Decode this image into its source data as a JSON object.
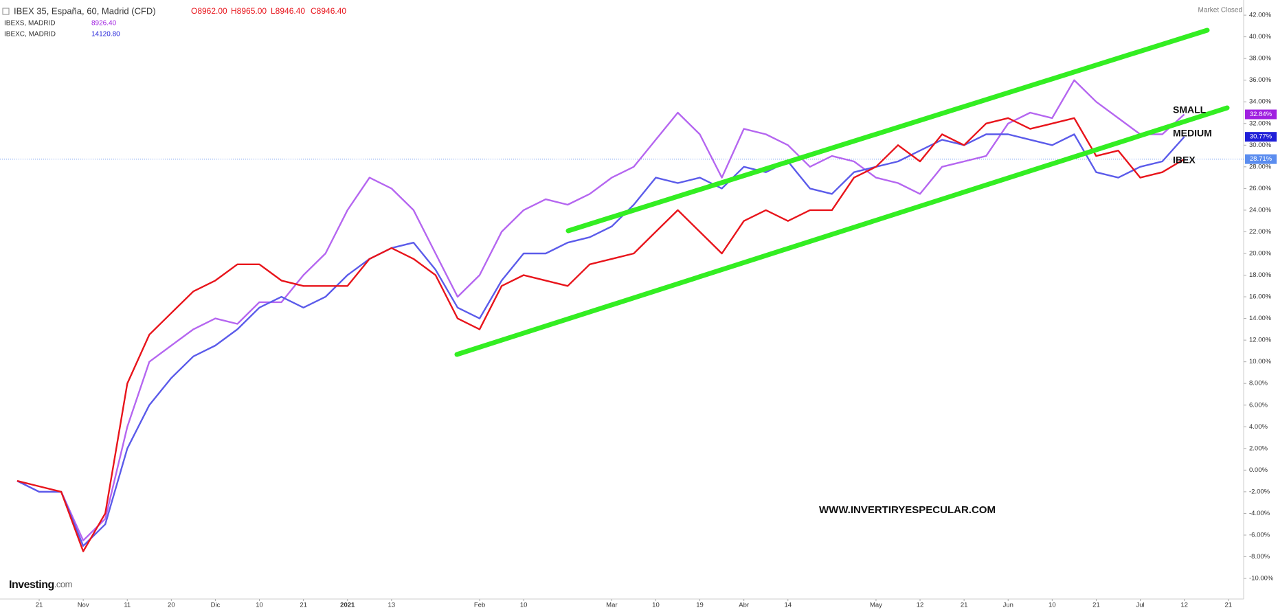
{
  "chart_data": {
    "type": "line",
    "header": {
      "symbol": "IBEX 35, España, 60, Madrid (CFD)",
      "open": "O8962.00",
      "high": "H8965.00",
      "low": "L8946.40",
      "close": "C8946.40",
      "line2": "IBEXS, MADRID",
      "line2_value": "8926.40",
      "line3": "IBEXC, MADRID",
      "line3_value": "14120.80",
      "status": "Market Closed"
    },
    "watermark": "WWW.INVERTIRYESPECULAR.COM",
    "logo": "Investing",
    "logo_suffix": ".com",
    "categories": [
      null,
      "21",
      null,
      "Nov",
      null,
      "11",
      null,
      "20",
      null,
      "Dic",
      null,
      "10",
      null,
      "21",
      null,
      "2021",
      null,
      "13",
      null,
      null,
      null,
      "Feb",
      null,
      "10",
      null,
      null,
      null,
      "Mar",
      null,
      "10",
      null,
      "19",
      null,
      "Abr",
      null,
      "14",
      null,
      null,
      null,
      "May",
      null,
      "12",
      null,
      "21",
      null,
      "Jun",
      null,
      "10",
      null,
      "21",
      null,
      "Jul",
      null,
      "12",
      null,
      "21"
    ],
    "series": [
      {
        "name": "IBEX",
        "color": "#e8141b",
        "last_label": "28.71%",
        "tag_color": "#5b8def",
        "values": [
          -1,
          -1.5,
          -2,
          -7.5,
          -4,
          8,
          12.5,
          14.5,
          16.5,
          17.5,
          19,
          19,
          17.5,
          17,
          17,
          17,
          19.5,
          20.5,
          19.5,
          18,
          14,
          13,
          17,
          18,
          17.5,
          17,
          19,
          19.5,
          20,
          22,
          24,
          22,
          20,
          23,
          24,
          23,
          24,
          24,
          27,
          28,
          30,
          28.5,
          31,
          30,
          32,
          32.5,
          31.5,
          32,
          32.5,
          29,
          29.5,
          27,
          27.5,
          28.71,
          null,
          null
        ]
      },
      {
        "name": "MEDIUM",
        "color": "#5b5bea",
        "last_label": "30.77%",
        "tag_color": "#1f1fd8",
        "values": [
          -1,
          -2,
          -2,
          -7,
          -5,
          2,
          6,
          8.5,
          10.5,
          11.5,
          13,
          15,
          16,
          15,
          16,
          18,
          19.5,
          20.5,
          21,
          18.5,
          15,
          14,
          17.5,
          20,
          20,
          21,
          21.5,
          22.5,
          24.5,
          27,
          26.5,
          27,
          26,
          28,
          27.5,
          28.5,
          26,
          25.5,
          27.5,
          28,
          28.5,
          29.5,
          30.5,
          30,
          31,
          31,
          30.5,
          30,
          31,
          27.5,
          27,
          28,
          28.5,
          30.77,
          null,
          null
        ]
      },
      {
        "name": "SMALL",
        "color": "#b566f0",
        "last_label": "32.84%",
        "tag_color": "#a020e0",
        "values": [
          -1,
          -2,
          -2,
          -6.5,
          -4.5,
          4,
          10,
          11.5,
          13,
          14,
          13.5,
          15.5,
          15.5,
          18,
          20,
          24,
          27,
          26,
          24,
          20,
          16,
          18,
          22,
          24,
          25,
          24.5,
          25.5,
          27,
          28,
          30.5,
          33,
          31,
          27,
          31.5,
          31,
          30,
          28,
          29,
          28.5,
          27,
          26.5,
          25.5,
          28,
          28.5,
          29,
          32,
          33,
          32.5,
          36,
          34,
          32.5,
          31,
          31,
          32.84,
          null,
          null
        ]
      }
    ],
    "ylim": [
      -11.9,
      43.4
    ],
    "yticks": [
      {
        "value": -10,
        "label": "-10.00%"
      },
      {
        "value": -8,
        "label": "-8.00%"
      },
      {
        "value": -6,
        "label": "-6.00%"
      },
      {
        "value": -4,
        "label": "-4.00%"
      },
      {
        "value": -2,
        "label": "-2.00%"
      },
      {
        "value": 0,
        "label": "0.00%"
      },
      {
        "value": 2,
        "label": "2.00%"
      },
      {
        "value": 4,
        "label": "4.00%"
      },
      {
        "value": 6,
        "label": "6.00%"
      },
      {
        "value": 8,
        "label": "8.00%"
      },
      {
        "value": 10,
        "label": "10.00%"
      },
      {
        "value": 12,
        "label": "12.00%"
      },
      {
        "value": 14,
        "label": "14.00%"
      },
      {
        "value": 16,
        "label": "16.00%"
      },
      {
        "value": 18,
        "label": "18.00%"
      },
      {
        "value": 20,
        "label": "20.00%"
      },
      {
        "value": 22,
        "label": "22.00%"
      },
      {
        "value": 24,
        "label": "24.00%"
      },
      {
        "value": 26,
        "label": "26.00%"
      },
      {
        "value": 28,
        "label": "28.00%"
      },
      {
        "value": 30,
        "label": "30.00%"
      },
      {
        "value": 32,
        "label": "32.00%"
      },
      {
        "value": 34,
        "label": "34.00%"
      },
      {
        "value": 36,
        "label": "36.00%"
      },
      {
        "value": 38,
        "label": "38.00%"
      },
      {
        "value": 40,
        "label": "40.00%"
      },
      {
        "value": 42,
        "label": "42.00%"
      }
    ],
    "grid": false
  }
}
